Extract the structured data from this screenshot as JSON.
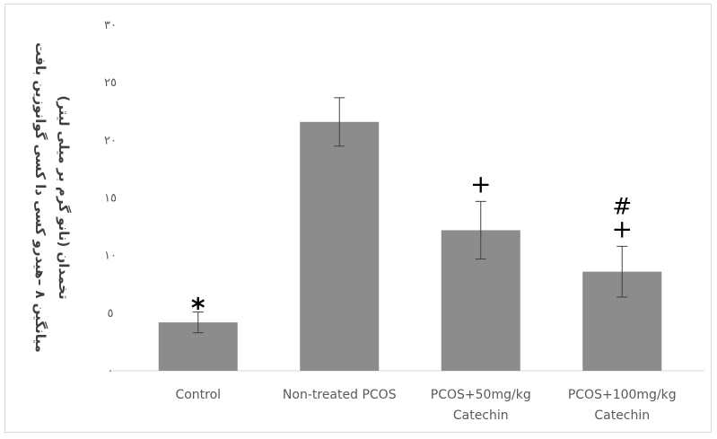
{
  "chart_data": {
    "type": "bar",
    "categories": [
      [
        "Control"
      ],
      [
        "Non-treated  PCOS"
      ],
      [
        "PCOS+50mg/kg",
        "Catechin"
      ],
      [
        "PCOS+100mg/kg",
        "Catechin"
      ]
    ],
    "values": [
      4.2,
      21.6,
      12.2,
      8.6
    ],
    "errors": [
      0.9,
      2.1,
      2.5,
      2.2
    ],
    "annotations": [
      [
        "*"
      ],
      [],
      [
        "+"
      ],
      [
        "#",
        "+"
      ]
    ],
    "ylim": [
      0,
      30
    ],
    "yticks": [
      0,
      5,
      10,
      15,
      20,
      25,
      30
    ],
    "ytick_labels": [
      "٠",
      "٥",
      "١٠",
      "١٥",
      "٢٠",
      "٢٥",
      "٣٠"
    ],
    "ylabel_lines": [
      "میانگین ٨ –هیدرو کسی دا کسی گوانوزین بافت",
      "تخمدان (نانو گرم بر میلی لیتر)"
    ],
    "bar_color": "#8c8c8c",
    "error_color": "#404040",
    "axis_color": "#d9d9d9"
  }
}
